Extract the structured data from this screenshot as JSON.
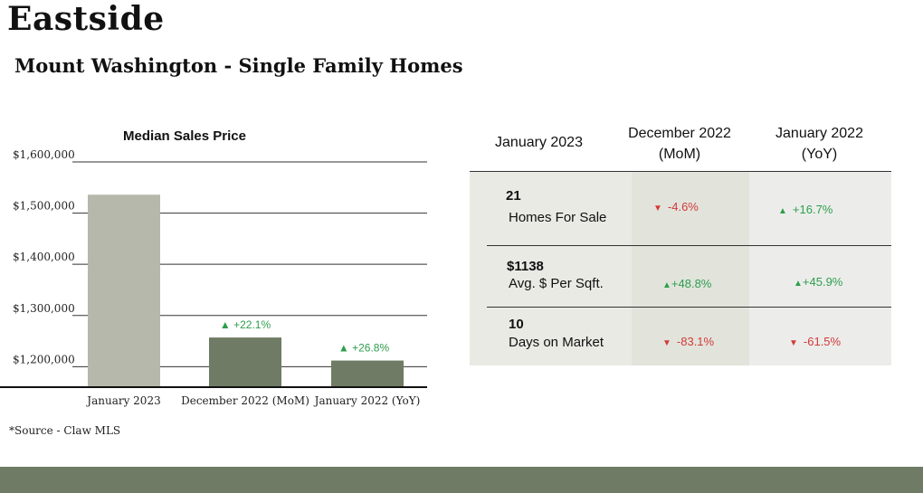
{
  "header": {
    "title": "Eastside",
    "subtitle": "Mount Washington - Single Family Homes"
  },
  "chart_data": {
    "type": "bar",
    "title": "Median Sales Price",
    "categories": [
      "January 2023",
      "December 2022 (MoM)",
      "January 2022 (YoY)"
    ],
    "values": [
      1536000,
      1257000,
      1212000
    ],
    "ylim": [
      1160000,
      1600000
    ],
    "yticks": [
      1200000,
      1300000,
      1400000,
      1500000,
      1600000
    ],
    "ytick_labels": [
      "$1,200,000",
      "$1,300,000",
      "$1,400,000",
      "$1,500,000",
      "$1,600,000"
    ],
    "grid": true,
    "colors": [
      "#b5b8aa",
      "#6f7b64",
      "#6f7b64"
    ],
    "annotations": [
      "",
      "+22.1%",
      "+26.8%"
    ]
  },
  "table": {
    "headers": [
      "January 2023",
      "December 2022 (MoM)",
      "January 2022 (YoY)"
    ],
    "rows": [
      {
        "value": "21",
        "label": "Homes For Sale",
        "mom": "-4.6%",
        "mom_dir": "down",
        "yoy": "+16.7%",
        "yoy_dir": "up"
      },
      {
        "value": "$1138",
        "label": "Avg. $ Per Sqft.",
        "mom": "+48.8%",
        "mom_dir": "up",
        "yoy": "+45.9%",
        "yoy_dir": "up"
      },
      {
        "value": "10",
        "label": "Days on Market",
        "mom": "-83.1%",
        "mom_dir": "down",
        "yoy": "-61.5%",
        "yoy_dir": "down"
      }
    ]
  },
  "footer": {
    "source": "*Source - Claw MLS"
  },
  "colors": {
    "accent_green": "#6f7b64",
    "bar_gray": "#b5b8aa",
    "up": "#2e9e4f",
    "down": "#d23a3a"
  }
}
